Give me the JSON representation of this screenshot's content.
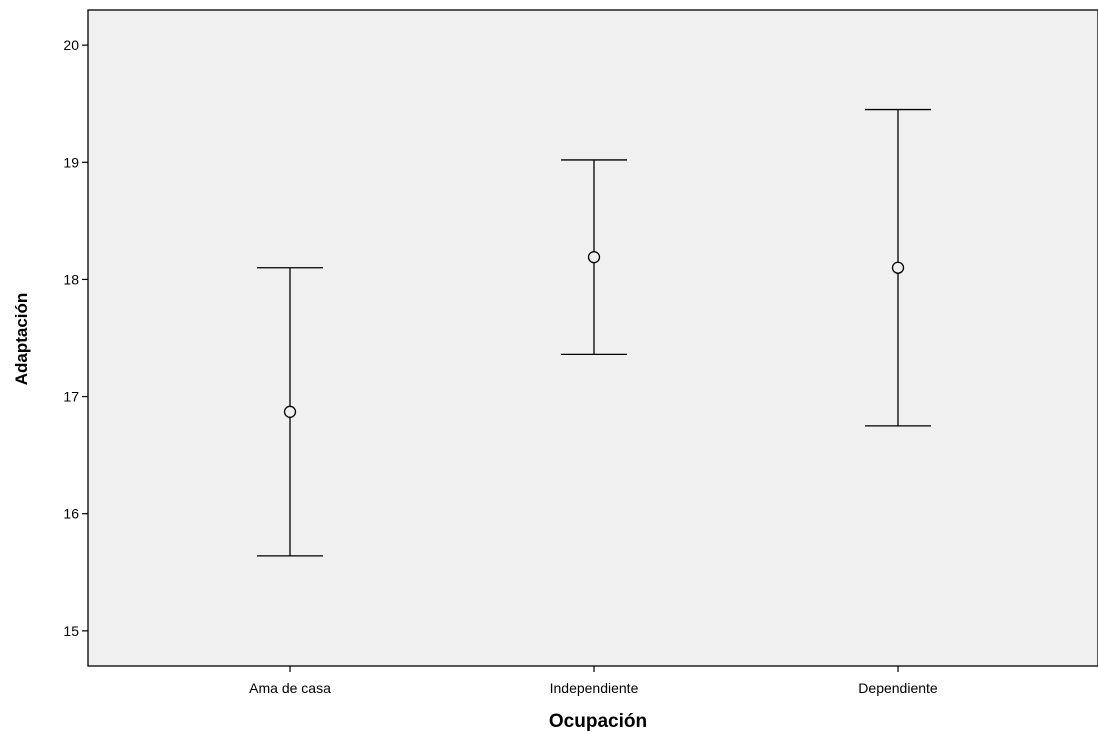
{
  "chart_data": {
    "type": "errorbar",
    "xlabel": "Ocupación",
    "ylabel": "Adaptación",
    "categories": [
      "Ama de casa",
      "Independiente",
      "Dependiente"
    ],
    "series": [
      {
        "mean": [
          16.87,
          18.19,
          18.1
        ],
        "lower": [
          15.64,
          17.36,
          16.75
        ],
        "upper": [
          18.1,
          19.02,
          19.45
        ]
      }
    ],
    "ylim": [
      14.7,
      20.3
    ],
    "yticks": [
      15,
      16,
      17,
      18,
      19,
      20
    ],
    "grid": false,
    "legend": "none",
    "colors": {
      "plot_background": "#f0f0f0",
      "marks": "#000000",
      "axis": "#000000"
    }
  }
}
